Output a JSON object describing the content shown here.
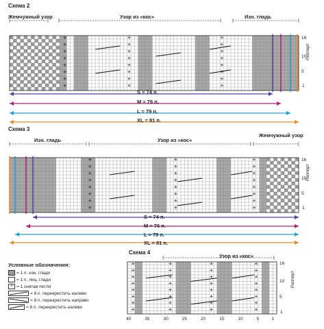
{
  "scheme2": {
    "title": "Схема 2",
    "sections": [
      "Жемчужный узор",
      "Узор из «кос»",
      "Изн. гладь"
    ],
    "row_numbers": [
      "16",
      "10",
      "5",
      "1"
    ],
    "rapport": "Раппорт",
    "sizes": [
      {
        "label": "S = 74 п.",
        "color": "#5b3fa0"
      },
      {
        "label": "M = 76 п.",
        "color": "#b0207a"
      },
      {
        "label": "L = 79 п.",
        "color": "#1ea0d0"
      },
      {
        "label": "XL = 81 п.",
        "color": "#e88a2a"
      }
    ]
  },
  "scheme3": {
    "title": "Схема 3",
    "sections": [
      "Изн. гладь",
      "Узор из «кос»",
      "Жемчужный узор"
    ],
    "row_numbers": [
      "16",
      "10",
      "5",
      "1"
    ],
    "rapport": "Раппорт",
    "sizes": [
      {
        "label": "S = 74 п.",
        "color": "#5b3fa0"
      },
      {
        "label": "M = 76 п.",
        "color": "#b0207a"
      },
      {
        "label": "L = 79 п.",
        "color": "#1ea0d0"
      },
      {
        "label": "XL = 81 п.",
        "color": "#e88a2a"
      }
    ]
  },
  "legend": {
    "title": "Условные обозначения:",
    "items": [
      "= 1 п. изн. глади",
      "= 1 п. лиц. глади",
      "= 1 снятая петля",
      "= 8 п. перекрестить налево",
      "= 8 п. перекрестить направо",
      "= 6 п. перекрестить налево"
    ]
  },
  "scheme4": {
    "title": "Схема 4",
    "section": "Узор из «кос»",
    "row_numbers": [
      "16",
      "10",
      "5",
      "1"
    ],
    "col_numbers": [
      "40",
      "35",
      "30",
      "25",
      "20",
      "15",
      "10",
      "5",
      "1"
    ],
    "rapport": "Раппорт"
  }
}
